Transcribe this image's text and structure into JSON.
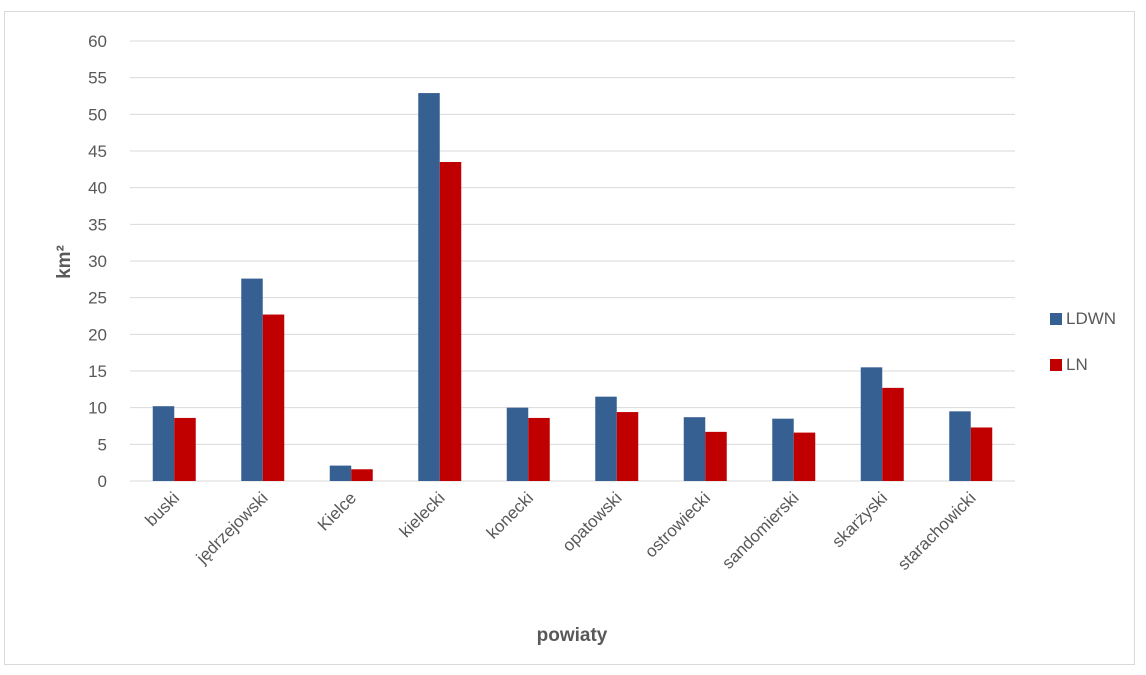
{
  "chart_data": {
    "type": "bar",
    "title": "",
    "xlabel": "powiaty",
    "ylabel": "km²",
    "ylim": [
      0,
      60
    ],
    "yticks": [
      0,
      5,
      10,
      15,
      20,
      25,
      30,
      35,
      40,
      45,
      50,
      55,
      60
    ],
    "grid": true,
    "legend_position": "right",
    "categories": [
      "buski",
      "jędrzejowski",
      "Kielce",
      "kielecki",
      "konecki",
      "opatowski",
      "ostrowiecki",
      "sandomierski",
      "skarżyski",
      "starachowicki"
    ],
    "series": [
      {
        "name": "LDWN",
        "color": "#376092",
        "values": [
          10.2,
          27.6,
          2.1,
          52.9,
          10.0,
          11.5,
          8.7,
          8.5,
          15.5,
          9.5
        ]
      },
      {
        "name": "LN",
        "color": "#c00000",
        "values": [
          8.6,
          22.7,
          1.6,
          43.5,
          8.6,
          9.4,
          6.7,
          6.6,
          12.7,
          7.3
        ]
      }
    ]
  }
}
